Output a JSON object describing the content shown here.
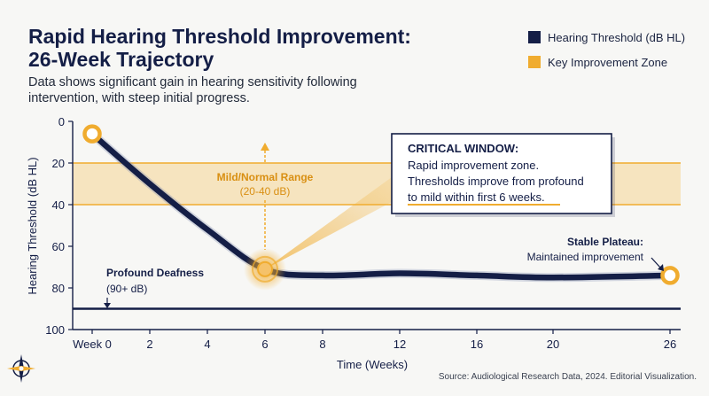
{
  "header": {
    "title_line1": "Rapid Hearing Threshold Improvement:",
    "title_line2": "26-Week Trajectory",
    "subtitle_line1": "Data shows significant gain in hearing sensitivity following",
    "subtitle_line2": "intervention, with steep initial progress."
  },
  "legend": {
    "items": [
      {
        "label": "Hearing Threshold (dB HL)",
        "color": "#141e46"
      },
      {
        "label": "Key Improvement Zone",
        "color": "#f0ac2f"
      }
    ]
  },
  "annotations": {
    "mild_title": "Mild/Normal Range",
    "mild_sub": "(20-40 dB)",
    "profound_title": "Profound Deafness",
    "profound_sub": "(90+ dB)",
    "critical_title": "CRITICAL WINDOW:",
    "critical_line1": "Rapid improvement zone.",
    "critical_line2": "Thresholds improve from profound",
    "critical_line3": "to mild within first 6 weeks.",
    "plateau_title": "Stable Plateau:",
    "plateau_sub": "Maintained improvement"
  },
  "source": "Source: Audiological Research Data, 2024. Editorial Visualization.",
  "chart_data": {
    "type": "line",
    "title": "Rapid Hearing Threshold Improvement: 26-Week Trajectory",
    "xlabel": "Time (Weeks)",
    "ylabel": "Hearing Threshold (dB HL)",
    "x_ticks": [
      0,
      2,
      4,
      6,
      8,
      12,
      16,
      20,
      26
    ],
    "x_tick_labels": [
      "Week 0",
      "2",
      "4",
      "6",
      "8",
      "12",
      "16",
      "20",
      "26"
    ],
    "y_ticks": [
      0,
      20,
      40,
      60,
      80,
      100
    ],
    "y_tick_labels": [
      "0",
      "20",
      "40",
      "60",
      "80",
      "100"
    ],
    "ylim": [
      0,
      100
    ],
    "y_inverted": true,
    "series": [
      {
        "name": "Hearing Threshold (dB HL)",
        "color": "#141e46",
        "points": [
          [
            0,
            6
          ],
          [
            2,
            30
          ],
          [
            4,
            52
          ],
          [
            6,
            71
          ],
          [
            8,
            74
          ],
          [
            12,
            73
          ],
          [
            16,
            74
          ],
          [
            20,
            75
          ],
          [
            26,
            74
          ]
        ]
      }
    ],
    "bands": [
      {
        "name": "Mild/Normal Range",
        "from": 20,
        "to": 40,
        "color": "#f0ac2f"
      }
    ],
    "reference_lines": [
      {
        "name": "Profound Deafness",
        "value": 90,
        "color": "#141e46"
      }
    ],
    "highlight_points": [
      [
        0,
        6
      ],
      [
        6,
        71
      ],
      [
        26,
        74
      ]
    ],
    "grid": false,
    "legend_position": "top-right"
  }
}
